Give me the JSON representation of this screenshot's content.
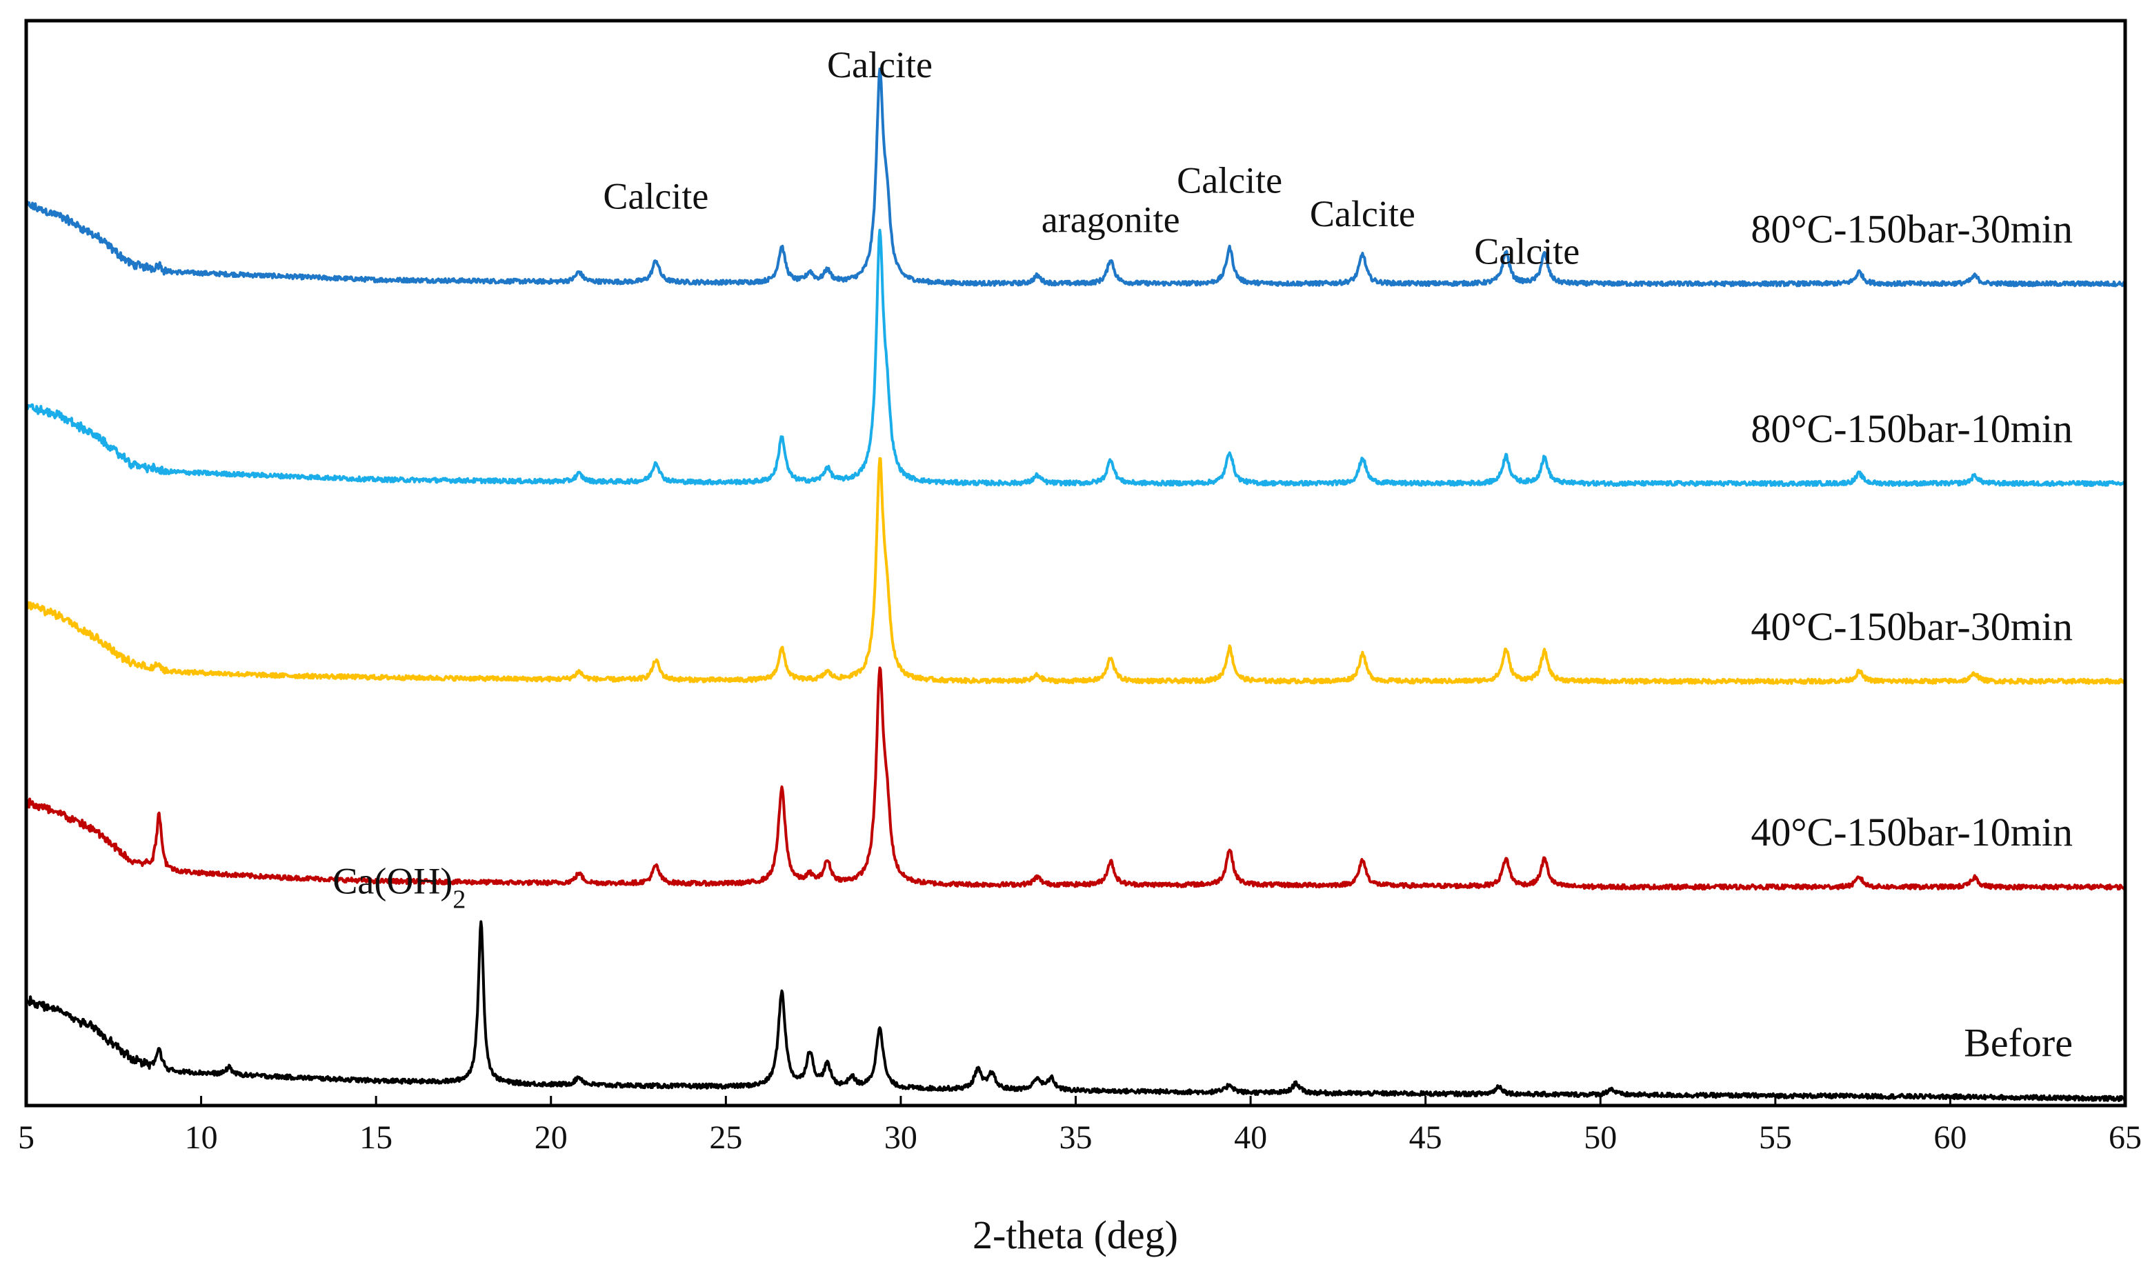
{
  "chart_data": {
    "type": "line",
    "title": "",
    "xlabel": "2-theta (deg)",
    "ylabel": "",
    "xlim": [
      5,
      65
    ],
    "xticks": [
      "5",
      "10",
      "15",
      "20",
      "25",
      "30",
      "35",
      "40",
      "45",
      "50",
      "55",
      "60",
      "65"
    ],
    "yticks_visible": false,
    "y_units": "intensity (a.u., stacked with vertical offsets)",
    "series": [
      {
        "name": "80°C-150bar-30min",
        "color": "#1F77C8",
        "baseline": 4.12,
        "background": [
          [
            5,
            4.52
          ],
          [
            6,
            4.46
          ],
          [
            7,
            4.36
          ],
          [
            8,
            4.22
          ],
          [
            9,
            4.18
          ],
          [
            12,
            4.16
          ],
          [
            15,
            4.14
          ],
          [
            20,
            4.13
          ],
          [
            30,
            4.12
          ],
          [
            40,
            4.12
          ],
          [
            50,
            4.12
          ],
          [
            60,
            4.12
          ],
          [
            65,
            4.12
          ]
        ],
        "peaks": [
          [
            8.8,
            0.03
          ],
          [
            20.8,
            0.05
          ],
          [
            23.0,
            0.11
          ],
          [
            26.6,
            0.18
          ],
          [
            27.4,
            0.05
          ],
          [
            27.9,
            0.06
          ],
          [
            29.4,
            1.0
          ],
          [
            29.6,
            0.3
          ],
          [
            33.9,
            0.04
          ],
          [
            36.0,
            0.12
          ],
          [
            39.4,
            0.18
          ],
          [
            43.2,
            0.15
          ],
          [
            47.3,
            0.16
          ],
          [
            48.4,
            0.15
          ],
          [
            57.4,
            0.06
          ],
          [
            60.7,
            0.04
          ]
        ]
      },
      {
        "name": "80°C-150bar-10min",
        "color": "#1AADEA",
        "baseline": 3.11,
        "background": [
          [
            5,
            3.5
          ],
          [
            6,
            3.45
          ],
          [
            7,
            3.35
          ],
          [
            8,
            3.21
          ],
          [
            9,
            3.17
          ],
          [
            12,
            3.15
          ],
          [
            15,
            3.13
          ],
          [
            20,
            3.12
          ],
          [
            30,
            3.11
          ],
          [
            40,
            3.11
          ],
          [
            50,
            3.11
          ],
          [
            60,
            3.11
          ],
          [
            65,
            3.11
          ]
        ],
        "peaks": [
          [
            20.8,
            0.04
          ],
          [
            23.0,
            0.1
          ],
          [
            26.6,
            0.23
          ],
          [
            27.9,
            0.07
          ],
          [
            29.4,
            1.2
          ],
          [
            29.6,
            0.3
          ],
          [
            33.9,
            0.04
          ],
          [
            36.0,
            0.12
          ],
          [
            39.4,
            0.16
          ],
          [
            43.2,
            0.13
          ],
          [
            47.3,
            0.14
          ],
          [
            48.4,
            0.13
          ],
          [
            57.4,
            0.05
          ],
          [
            60.7,
            0.04
          ]
        ]
      },
      {
        "name": "40°C-150bar-30min",
        "color": "#FFC000",
        "baseline": 2.11,
        "background": [
          [
            5,
            2.5
          ],
          [
            6,
            2.44
          ],
          [
            7,
            2.33
          ],
          [
            8,
            2.2
          ],
          [
            9,
            2.16
          ],
          [
            12,
            2.14
          ],
          [
            15,
            2.13
          ],
          [
            20,
            2.12
          ],
          [
            30,
            2.11
          ],
          [
            40,
            2.11
          ],
          [
            50,
            2.11
          ],
          [
            60,
            2.11
          ],
          [
            65,
            2.11
          ]
        ],
        "peaks": [
          [
            8.8,
            0.03
          ],
          [
            20.8,
            0.04
          ],
          [
            23.0,
            0.1
          ],
          [
            26.6,
            0.16
          ],
          [
            27.9,
            0.04
          ],
          [
            29.4,
            1.05
          ],
          [
            29.6,
            0.3
          ],
          [
            33.9,
            0.03
          ],
          [
            36.0,
            0.12
          ],
          [
            39.4,
            0.17
          ],
          [
            43.2,
            0.14
          ],
          [
            47.3,
            0.16
          ],
          [
            48.4,
            0.15
          ],
          [
            57.4,
            0.05
          ],
          [
            60.7,
            0.04
          ]
        ]
      },
      {
        "name": "40°C-150bar-10min",
        "color": "#C00000",
        "baseline": 1.07,
        "background": [
          [
            5,
            1.5
          ],
          [
            6,
            1.44
          ],
          [
            7,
            1.35
          ],
          [
            8,
            1.2
          ],
          [
            9,
            1.15
          ],
          [
            12,
            1.12
          ],
          [
            15,
            1.1
          ],
          [
            20,
            1.09
          ],
          [
            30,
            1.08
          ],
          [
            40,
            1.08
          ],
          [
            50,
            1.07
          ],
          [
            60,
            1.07
          ],
          [
            65,
            1.07
          ]
        ],
        "peaks": [
          [
            8.8,
            0.28
          ],
          [
            20.8,
            0.05
          ],
          [
            23.0,
            0.09
          ],
          [
            26.6,
            0.48
          ],
          [
            27.4,
            0.04
          ],
          [
            27.9,
            0.11
          ],
          [
            29.4,
            1.02
          ],
          [
            29.6,
            0.3
          ],
          [
            33.9,
            0.04
          ],
          [
            36.0,
            0.12
          ],
          [
            39.4,
            0.18
          ],
          [
            43.2,
            0.13
          ],
          [
            47.3,
            0.14
          ],
          [
            48.4,
            0.14
          ],
          [
            57.4,
            0.05
          ],
          [
            60.7,
            0.05
          ]
        ]
      },
      {
        "name": "Before",
        "color": "#000000",
        "baseline": 0.0,
        "background": [
          [
            5,
            0.5
          ],
          [
            6,
            0.44
          ],
          [
            7,
            0.35
          ],
          [
            8,
            0.2
          ],
          [
            9,
            0.14
          ],
          [
            11,
            0.12
          ],
          [
            15,
            0.09
          ],
          [
            20,
            0.07
          ],
          [
            30,
            0.05
          ],
          [
            40,
            0.03
          ],
          [
            50,
            0.02
          ],
          [
            60,
            0.01
          ],
          [
            65,
            0.0
          ]
        ],
        "peaks": [
          [
            8.8,
            0.1
          ],
          [
            10.8,
            0.04
          ],
          [
            18.0,
            0.82
          ],
          [
            20.8,
            0.04
          ],
          [
            26.6,
            0.48
          ],
          [
            27.4,
            0.17
          ],
          [
            27.9,
            0.11
          ],
          [
            28.6,
            0.05
          ],
          [
            29.4,
            0.31
          ],
          [
            32.2,
            0.1
          ],
          [
            32.6,
            0.08
          ],
          [
            33.9,
            0.06
          ],
          [
            34.3,
            0.06
          ],
          [
            39.4,
            0.04
          ],
          [
            41.3,
            0.05
          ],
          [
            47.1,
            0.04
          ],
          [
            50.3,
            0.03
          ]
        ]
      }
    ],
    "annotations": [
      {
        "text": "Calcite",
        "x": 29.4,
        "series": "80°C-150bar-30min"
      },
      {
        "text": "Calcite",
        "x": 23.0,
        "series": "80°C-150bar-30min"
      },
      {
        "text": "aragonite",
        "x": 36.0,
        "series": "80°C-150bar-30min"
      },
      {
        "text": "Calcite",
        "x": 39.4,
        "series": "80°C-150bar-30min"
      },
      {
        "text": "Calcite",
        "x": 43.2,
        "series": "80°C-150bar-30min"
      },
      {
        "text": "Calcite",
        "x": 47.9,
        "series": "80°C-150bar-30min"
      },
      {
        "text": "Ca(OH)",
        "subscript": "2",
        "x": 18.0,
        "series": "Before"
      }
    ]
  }
}
